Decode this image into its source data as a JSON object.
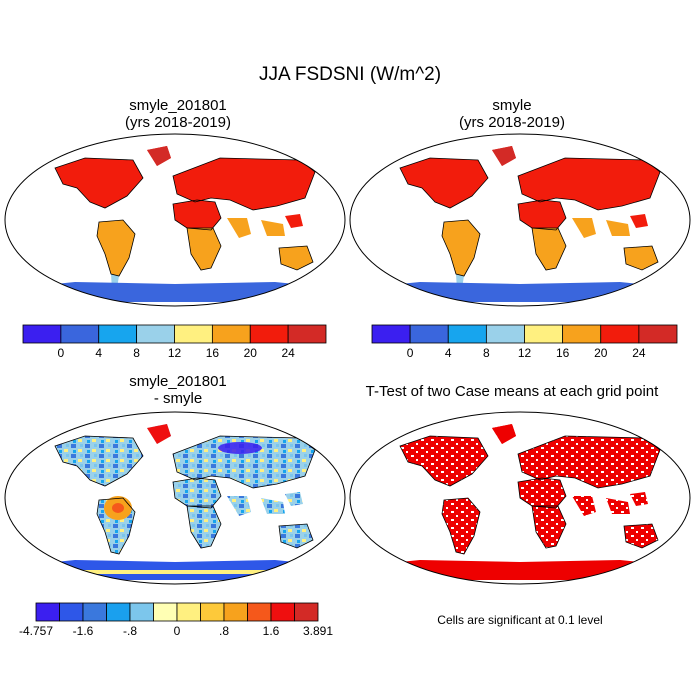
{
  "title": "JJA FSDSNI (W/m^2)",
  "panels": [
    {
      "id": "p1",
      "title_line1": "smyle_201801",
      "title_line2": "(yrs 2018-2019)"
    },
    {
      "id": "p2",
      "title_line1": "smyle",
      "title_line2": "(yrs 2018-2019)"
    },
    {
      "id": "p3",
      "title_line1": "smyle_201801",
      "title_line2": "- smyle"
    },
    {
      "id": "p4",
      "title_line1": "T-Test of two Case means at each grid point",
      "title_line2": ""
    }
  ],
  "colorbar_abs": {
    "colors": [
      "#3b1ff0",
      "#3a66dd",
      "#17a5ee",
      "#9ad1ea",
      "#fff080",
      "#f7a21d",
      "#f21c0c",
      "#d32a26"
    ],
    "labels": [
      "0",
      "4",
      "8",
      "12",
      "16",
      "20",
      "24"
    ]
  },
  "colorbar_diff": {
    "colors": [
      "#3b1ff0",
      "#2e57e8",
      "#3a78dd",
      "#1aa0ee",
      "#7cc6ec",
      "#ffffb4",
      "#fff080",
      "#fdc93a",
      "#f7a21d",
      "#f5581b",
      "#ef0f0f",
      "#d32a26"
    ],
    "labels": [
      "-4.757",
      "-1.6",
      "-.8",
      "0",
      ".8",
      "1.6",
      "3.891"
    ]
  },
  "significance_note": "Cells are significant at 0.1 level",
  "colors": {
    "ocean": "#ffffff",
    "sig_red": "#ee0000",
    "antarctica_abs": "#3a66dd",
    "land_north_hot": "#f21c0c",
    "land_tropics": "#f7a21d"
  }
}
